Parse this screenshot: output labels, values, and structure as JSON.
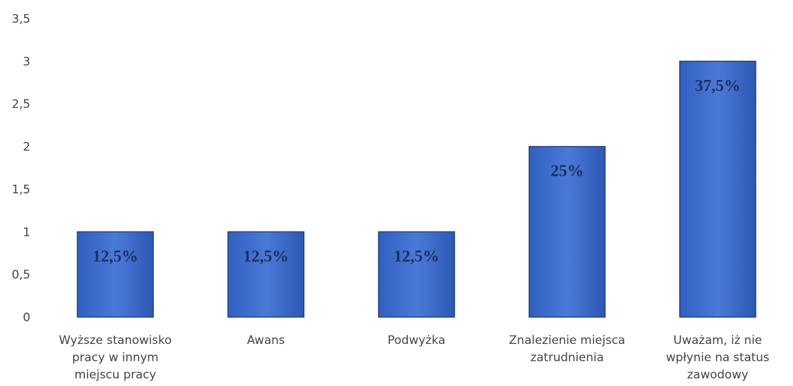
{
  "chart_data": {
    "type": "bar",
    "categories": [
      [
        "Wyższe stanowisko",
        "pracy w innym",
        "miejscu pracy"
      ],
      [
        "Awans"
      ],
      [
        "Podwyżka"
      ],
      [
        "Znalezienie miejsca",
        "zatrudnienia"
      ],
      [
        "Uważam, iż nie",
        "wpłynie na status",
        "zawodowy"
      ]
    ],
    "values": [
      1,
      1,
      1,
      2,
      3
    ],
    "data_labels": [
      "12,5%",
      "12,5%",
      "12,5%",
      "25%",
      "37,5%"
    ],
    "ylim": [
      0,
      3.5
    ],
    "yticks": [
      "0",
      "0,5",
      "1",
      "1,5",
      "2",
      "2,5",
      "3",
      "3,5"
    ],
    "grid": false,
    "legend": "none",
    "bar_color": "#3f6fcf",
    "bar_edge_color": "#1f3f86"
  }
}
